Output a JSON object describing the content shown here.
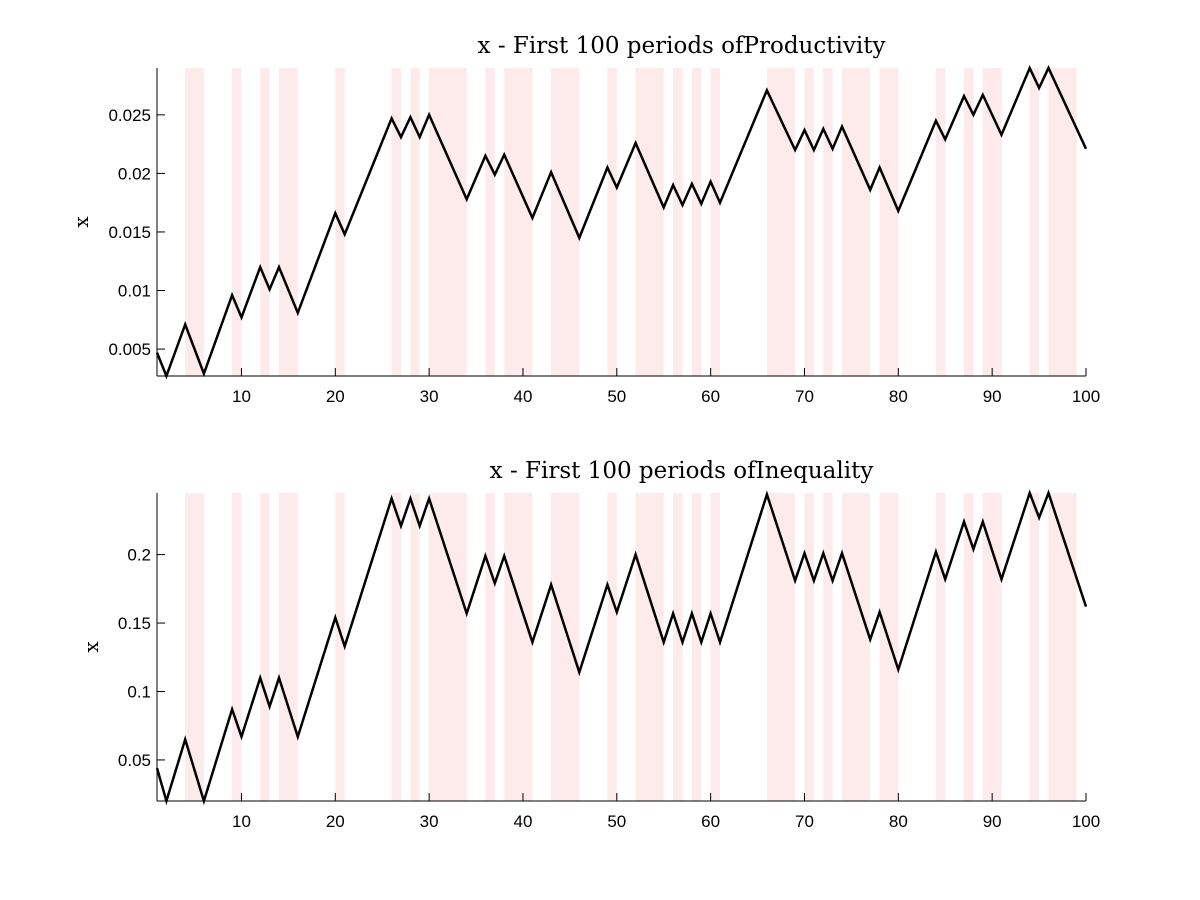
{
  "chart_data": [
    {
      "type": "line",
      "title": "x - First 100 periods ofProductivity",
      "xlabel": "",
      "ylabel": "x",
      "xlim": [
        1,
        100
      ],
      "ylim": [
        0.0027,
        0.029
      ],
      "xticks": [
        "10",
        "20",
        "30",
        "40",
        "50",
        "60",
        "70",
        "80",
        "90",
        "100"
      ],
      "yticks": [
        "0.005",
        "0.01",
        "0.015",
        "0.02",
        "0.025"
      ],
      "shaded_periods": [
        [
          4,
          6
        ],
        [
          9,
          10
        ],
        [
          12,
          13
        ],
        [
          14,
          16
        ],
        [
          20,
          21
        ],
        [
          26,
          27
        ],
        [
          28,
          29
        ],
        [
          30,
          34
        ],
        [
          36,
          37
        ],
        [
          38,
          41
        ],
        [
          43,
          46
        ],
        [
          49,
          50
        ],
        [
          52,
          55
        ],
        [
          56,
          57
        ],
        [
          58,
          59
        ],
        [
          60,
          61
        ],
        [
          66,
          69
        ],
        [
          70,
          71
        ],
        [
          72,
          73
        ],
        [
          74,
          77
        ],
        [
          78,
          80
        ],
        [
          84,
          85
        ],
        [
          87,
          88
        ],
        [
          89,
          91
        ],
        [
          94,
          95
        ],
        [
          96,
          99
        ]
      ],
      "series": [
        {
          "x": [
            1,
            2,
            4,
            6,
            9,
            10,
            12,
            13,
            14,
            16,
            20,
            21,
            26,
            27,
            28,
            29,
            30,
            34,
            36,
            37,
            38,
            41,
            43,
            46,
            49,
            50,
            52,
            55,
            56,
            57,
            58,
            59,
            60,
            61,
            66,
            69,
            70,
            71,
            72,
            73,
            74,
            77,
            78,
            80,
            84,
            85,
            87,
            88,
            89,
            91,
            94,
            95,
            96,
            100
          ],
          "y": [
            0.0047,
            0.0027,
            0.0071,
            0.0029,
            0.0096,
            0.0077,
            0.012,
            0.0101,
            0.012,
            0.0081,
            0.0166,
            0.0148,
            0.0247,
            0.0231,
            0.0248,
            0.0231,
            0.025,
            0.0178,
            0.0215,
            0.0199,
            0.0216,
            0.0162,
            0.0201,
            0.0145,
            0.0205,
            0.0188,
            0.0226,
            0.0171,
            0.019,
            0.0173,
            0.0191,
            0.0174,
            0.0193,
            0.0175,
            0.0271,
            0.022,
            0.0237,
            0.022,
            0.0238,
            0.0221,
            0.024,
            0.0186,
            0.0205,
            0.0168,
            0.0245,
            0.0229,
            0.0266,
            0.025,
            0.0267,
            0.0233,
            0.029,
            0.0273,
            0.029,
            0.0221
          ]
        }
      ]
    },
    {
      "type": "line",
      "title": "x - First 100 periods ofInequality",
      "xlabel": "",
      "ylabel": "x",
      "xlim": [
        1,
        100
      ],
      "ylim": [
        0.02,
        0.245
      ],
      "xticks": [
        "10",
        "20",
        "30",
        "40",
        "50",
        "60",
        "70",
        "80",
        "90",
        "100"
      ],
      "yticks": [
        "0.05",
        "0.1",
        "0.15",
        "0.2"
      ],
      "shaded_periods": [
        [
          4,
          6
        ],
        [
          9,
          10
        ],
        [
          12,
          13
        ],
        [
          14,
          16
        ],
        [
          20,
          21
        ],
        [
          26,
          27
        ],
        [
          28,
          29
        ],
        [
          30,
          34
        ],
        [
          36,
          37
        ],
        [
          38,
          41
        ],
        [
          43,
          46
        ],
        [
          49,
          50
        ],
        [
          52,
          55
        ],
        [
          56,
          57
        ],
        [
          58,
          59
        ],
        [
          60,
          61
        ],
        [
          66,
          69
        ],
        [
          70,
          71
        ],
        [
          72,
          73
        ],
        [
          74,
          77
        ],
        [
          78,
          80
        ],
        [
          84,
          85
        ],
        [
          87,
          88
        ],
        [
          89,
          91
        ],
        [
          94,
          95
        ],
        [
          96,
          99
        ]
      ],
      "series": [
        {
          "x": [
            1,
            2,
            4,
            6,
            9,
            10,
            12,
            13,
            14,
            16,
            20,
            21,
            26,
            27,
            28,
            29,
            30,
            34,
            36,
            37,
            38,
            41,
            43,
            46,
            49,
            50,
            52,
            55,
            56,
            57,
            58,
            59,
            60,
            61,
            66,
            69,
            70,
            71,
            72,
            73,
            74,
            77,
            78,
            80,
            84,
            85,
            87,
            88,
            89,
            91,
            94,
            95,
            96,
            100
          ],
          "y": [
            0.044,
            0.02,
            0.065,
            0.02,
            0.087,
            0.067,
            0.11,
            0.089,
            0.11,
            0.067,
            0.154,
            0.133,
            0.241,
            0.221,
            0.241,
            0.221,
            0.241,
            0.157,
            0.199,
            0.179,
            0.199,
            0.136,
            0.178,
            0.114,
            0.178,
            0.158,
            0.2,
            0.136,
            0.157,
            0.136,
            0.157,
            0.136,
            0.157,
            0.136,
            0.244,
            0.181,
            0.201,
            0.181,
            0.201,
            0.181,
            0.201,
            0.138,
            0.158,
            0.116,
            0.202,
            0.182,
            0.224,
            0.204,
            0.224,
            0.182,
            0.245,
            0.227,
            0.245,
            0.162
          ]
        }
      ]
    }
  ]
}
